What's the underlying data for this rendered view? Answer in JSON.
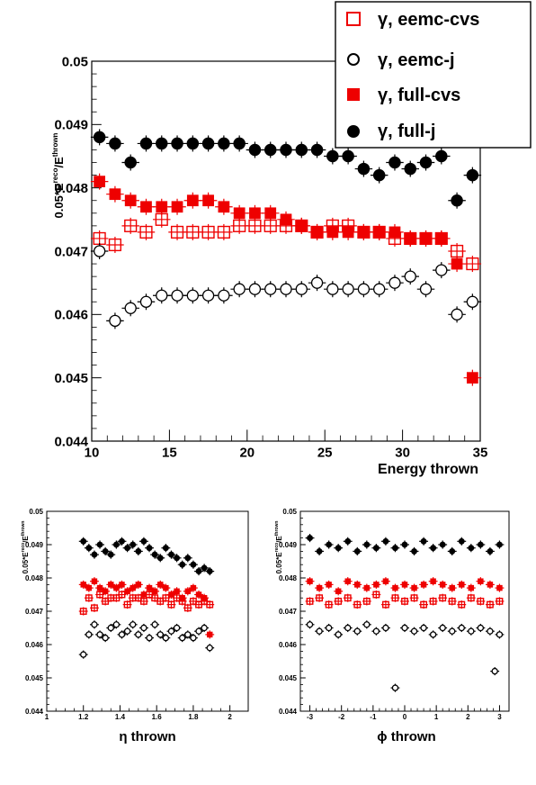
{
  "colors": {
    "red": "#ee0000",
    "black": "#000000",
    "open": "#ffffff"
  },
  "legend": {
    "entries": [
      {
        "label": "γ, eemc-cvs",
        "marker": "open-square",
        "color": "#ee0000"
      },
      {
        "label": "γ, eemc-j",
        "marker": "open-circle",
        "color": "#000000"
      },
      {
        "label": "γ, full-cvs",
        "marker": "full-square",
        "color": "#ee0000"
      },
      {
        "label": "γ, full-j",
        "marker": "full-circle",
        "color": "#000000"
      }
    ]
  },
  "chart_data": [
    {
      "type": "scatter",
      "xlabel": "Energy thrown",
      "ylabel": "0.05*E^reco/E^thrown",
      "xlim": [
        10,
        35
      ],
      "ylim": [
        0.044,
        0.05
      ],
      "xticks": [
        "10",
        "15",
        "20",
        "25",
        "30",
        "35"
      ],
      "yticks": [
        "0.044",
        "0.045",
        "0.046",
        "0.047",
        "0.048",
        "0.049",
        "0.05"
      ],
      "series": [
        {
          "name": "γ, eemc-cvs",
          "marker": "open-square",
          "color": "#ee0000",
          "x": [
            10.5,
            11.5,
            12.5,
            13.5,
            14.5,
            15.5,
            16.5,
            17.5,
            18.5,
            19.5,
            20.5,
            21.5,
            22.5,
            23.5,
            24.5,
            25.5,
            26.5,
            27.5,
            28.5,
            29.5,
            30.5,
            31.5,
            32.5,
            33.5,
            34.5
          ],
          "y": [
            0.0472,
            0.0471,
            0.0474,
            0.0473,
            0.0475,
            0.0473,
            0.0473,
            0.0473,
            0.0473,
            0.0474,
            0.0474,
            0.0474,
            0.0474,
            0.0474,
            0.0473,
            0.0474,
            0.0474,
            0.0473,
            0.0473,
            0.0472,
            0.0472,
            0.0472,
            0.0472,
            0.047,
            0.0468
          ]
        },
        {
          "name": "γ, eemc-j",
          "marker": "open-circle",
          "color": "#000000",
          "x": [
            10.5,
            11.5,
            12.5,
            13.5,
            14.5,
            15.5,
            16.5,
            17.5,
            18.5,
            19.5,
            20.5,
            21.5,
            22.5,
            23.5,
            24.5,
            25.5,
            26.5,
            27.5,
            28.5,
            29.5,
            30.5,
            31.5,
            32.5,
            33.5,
            34.5
          ],
          "y": [
            0.047,
            0.0459,
            0.0461,
            0.0462,
            0.0463,
            0.0463,
            0.0463,
            0.0463,
            0.0463,
            0.0464,
            0.0464,
            0.0464,
            0.0464,
            0.0464,
            0.0465,
            0.0464,
            0.0464,
            0.0464,
            0.0464,
            0.0465,
            0.0466,
            0.0464,
            0.0467,
            0.046,
            0.0462
          ]
        },
        {
          "name": "γ, full-cvs",
          "marker": "full-square",
          "color": "#ee0000",
          "x": [
            10.5,
            11.5,
            12.5,
            13.5,
            14.5,
            15.5,
            16.5,
            17.5,
            18.5,
            19.5,
            20.5,
            21.5,
            22.5,
            23.5,
            24.5,
            25.5,
            26.5,
            27.5,
            28.5,
            29.5,
            30.5,
            31.5,
            32.5,
            33.5,
            34.5
          ],
          "y": [
            0.0481,
            0.0479,
            0.0478,
            0.0477,
            0.0477,
            0.0477,
            0.0478,
            0.0478,
            0.0477,
            0.0476,
            0.0476,
            0.0476,
            0.0475,
            0.0474,
            0.0473,
            0.0473,
            0.0473,
            0.0473,
            0.0473,
            0.0473,
            0.0472,
            0.0472,
            0.0472,
            0.0468,
            0.045
          ]
        },
        {
          "name": "γ, full-j",
          "marker": "full-circle",
          "color": "#000000",
          "x": [
            10.5,
            11.5,
            12.5,
            13.5,
            14.5,
            15.5,
            16.5,
            17.5,
            18.5,
            19.5,
            20.5,
            21.5,
            22.5,
            23.5,
            24.5,
            25.5,
            26.5,
            27.5,
            28.5,
            29.5,
            30.5,
            31.5,
            32.5,
            33.5,
            34.5
          ],
          "y": [
            0.0488,
            0.0487,
            0.0484,
            0.0487,
            0.0487,
            0.0487,
            0.0487,
            0.0487,
            0.0487,
            0.0487,
            0.0486,
            0.0486,
            0.0486,
            0.0486,
            0.0486,
            0.0485,
            0.0485,
            0.0483,
            0.0482,
            0.0484,
            0.0483,
            0.0484,
            0.0485,
            0.0478,
            0.0482
          ]
        }
      ]
    },
    {
      "type": "scatter",
      "xlabel": "η thrown",
      "ylabel": "0.05*E^reco/E^thrown",
      "xlim": [
        1,
        2.1
      ],
      "ylim": [
        0.044,
        0.05
      ],
      "xticks": [
        "1",
        "1.2",
        "1.4",
        "1.6",
        "1.8",
        "2"
      ],
      "yticks": [
        "0.044",
        "0.045",
        "0.046",
        "0.047",
        "0.048",
        "0.049",
        "0.05"
      ],
      "series": [
        {
          "name": "γ, eemc-cvs",
          "marker": "open-square",
          "color": "#ee0000",
          "x": [
            1.2,
            1.23,
            1.26,
            1.29,
            1.32,
            1.35,
            1.38,
            1.41,
            1.44,
            1.47,
            1.5,
            1.53,
            1.56,
            1.59,
            1.62,
            1.65,
            1.68,
            1.71,
            1.74,
            1.77,
            1.8,
            1.83,
            1.86,
            1.89
          ],
          "y": [
            0.047,
            0.0474,
            0.0471,
            0.0475,
            0.0473,
            0.0474,
            0.0474,
            0.0475,
            0.0472,
            0.0474,
            0.0474,
            0.0473,
            0.0475,
            0.0474,
            0.0473,
            0.0474,
            0.0472,
            0.0474,
            0.0473,
            0.0471,
            0.0473,
            0.0472,
            0.0473,
            0.0472
          ]
        },
        {
          "name": "γ, eemc-j",
          "marker": "open-circle",
          "color": "#000000",
          "x": [
            1.2,
            1.23,
            1.26,
            1.29,
            1.32,
            1.35,
            1.38,
            1.41,
            1.44,
            1.47,
            1.5,
            1.53,
            1.56,
            1.59,
            1.62,
            1.65,
            1.68,
            1.71,
            1.74,
            1.77,
            1.8,
            1.83,
            1.86,
            1.89
          ],
          "y": [
            0.0457,
            0.0463,
            0.0466,
            0.0463,
            0.0462,
            0.0465,
            0.0466,
            0.0463,
            0.0464,
            0.0466,
            0.0463,
            0.0465,
            0.0462,
            0.0466,
            0.0463,
            0.0462,
            0.0464,
            0.0465,
            0.0462,
            0.0463,
            0.0462,
            0.0464,
            0.0465,
            0.0459
          ]
        },
        {
          "name": "γ, full-cvs",
          "marker": "full-square",
          "color": "#ee0000",
          "x": [
            1.2,
            1.23,
            1.26,
            1.29,
            1.32,
            1.35,
            1.38,
            1.41,
            1.44,
            1.47,
            1.5,
            1.53,
            1.56,
            1.59,
            1.62,
            1.65,
            1.68,
            1.71,
            1.74,
            1.77,
            1.8,
            1.83,
            1.86,
            1.89
          ],
          "y": [
            0.0478,
            0.0477,
            0.0479,
            0.0477,
            0.0476,
            0.0478,
            0.0477,
            0.0478,
            0.0476,
            0.0477,
            0.0478,
            0.0475,
            0.0477,
            0.0476,
            0.0478,
            0.0477,
            0.0475,
            0.0476,
            0.0474,
            0.0476,
            0.0477,
            0.0475,
            0.0474,
            0.0463
          ]
        },
        {
          "name": "γ, full-j",
          "marker": "full-circle",
          "color": "#000000",
          "x": [
            1.2,
            1.23,
            1.26,
            1.29,
            1.32,
            1.35,
            1.38,
            1.41,
            1.44,
            1.47,
            1.5,
            1.53,
            1.56,
            1.59,
            1.62,
            1.65,
            1.68,
            1.71,
            1.74,
            1.77,
            1.8,
            1.83,
            1.86,
            1.89
          ],
          "y": [
            0.0491,
            0.0489,
            0.0487,
            0.049,
            0.0488,
            0.0487,
            0.049,
            0.0491,
            0.0489,
            0.049,
            0.0488,
            0.0491,
            0.0489,
            0.0487,
            0.0486,
            0.0489,
            0.0487,
            0.0486,
            0.0484,
            0.0486,
            0.0484,
            0.0482,
            0.0483,
            0.0482
          ]
        }
      ]
    },
    {
      "type": "scatter",
      "xlabel": "ϕ thrown",
      "ylabel": "0.05*E^reco/E^thrown",
      "xlim": [
        -3.3,
        3.3
      ],
      "ylim": [
        0.044,
        0.05
      ],
      "xticks": [
        "-3",
        "-2",
        "-1",
        "0",
        "1",
        "2",
        "3"
      ],
      "yticks": [
        "0.044",
        "0.045",
        "0.046",
        "0.047",
        "0.048",
        "0.049",
        "0.05"
      ],
      "series": [
        {
          "name": "γ, eemc-cvs",
          "marker": "open-square",
          "color": "#ee0000",
          "x": [
            -3.0,
            -2.7,
            -2.4,
            -2.1,
            -1.8,
            -1.5,
            -1.2,
            -0.9,
            -0.6,
            -0.3,
            0.0,
            0.3,
            0.6,
            0.9,
            1.2,
            1.5,
            1.8,
            2.1,
            2.4,
            2.7,
            3.0
          ],
          "y": [
            0.0473,
            0.0474,
            0.0472,
            0.0473,
            0.0474,
            0.0472,
            0.0473,
            0.0475,
            0.0472,
            0.0474,
            0.0473,
            0.0474,
            0.0472,
            0.0473,
            0.0474,
            0.0473,
            0.0472,
            0.0474,
            0.0473,
            0.0472,
            0.0473
          ]
        },
        {
          "name": "γ, eemc-j",
          "marker": "open-circle",
          "color": "#000000",
          "x": [
            -3.0,
            -2.7,
            -2.4,
            -2.1,
            -1.8,
            -1.5,
            -1.2,
            -0.9,
            -0.6,
            -0.3,
            0.0,
            0.3,
            0.6,
            0.9,
            1.2,
            1.5,
            1.8,
            2.1,
            2.4,
            2.7,
            2.85,
            3.0
          ],
          "y": [
            0.0466,
            0.0464,
            0.0465,
            0.0463,
            0.0465,
            0.0464,
            0.0466,
            0.0464,
            0.0465,
            0.0447,
            0.0465,
            0.0464,
            0.0465,
            0.0463,
            0.0465,
            0.0464,
            0.0465,
            0.0464,
            0.0465,
            0.0464,
            0.0452,
            0.0463
          ]
        },
        {
          "name": "γ, full-cvs",
          "marker": "full-square",
          "color": "#ee0000",
          "x": [
            -3.0,
            -2.7,
            -2.4,
            -2.1,
            -1.8,
            -1.5,
            -1.2,
            -0.9,
            -0.6,
            -0.3,
            0.0,
            0.3,
            0.6,
            0.9,
            1.2,
            1.5,
            1.8,
            2.1,
            2.4,
            2.7,
            3.0
          ],
          "y": [
            0.0479,
            0.0477,
            0.0478,
            0.0476,
            0.0479,
            0.0478,
            0.0477,
            0.0478,
            0.0479,
            0.0477,
            0.0478,
            0.0477,
            0.0478,
            0.0479,
            0.0478,
            0.0477,
            0.0478,
            0.0477,
            0.0479,
            0.0478,
            0.0477
          ]
        },
        {
          "name": "γ, full-j",
          "marker": "full-circle",
          "color": "#000000",
          "x": [
            -3.0,
            -2.7,
            -2.4,
            -2.1,
            -1.8,
            -1.5,
            -1.2,
            -0.9,
            -0.6,
            -0.3,
            0.0,
            0.3,
            0.6,
            0.9,
            1.2,
            1.5,
            1.8,
            2.1,
            2.4,
            2.7,
            3.0
          ],
          "y": [
            0.0492,
            0.0488,
            0.049,
            0.0489,
            0.0491,
            0.0488,
            0.049,
            0.0489,
            0.0491,
            0.0489,
            0.049,
            0.0488,
            0.0491,
            0.0489,
            0.049,
            0.0488,
            0.0491,
            0.0489,
            0.049,
            0.0488,
            0.049
          ]
        }
      ]
    }
  ]
}
